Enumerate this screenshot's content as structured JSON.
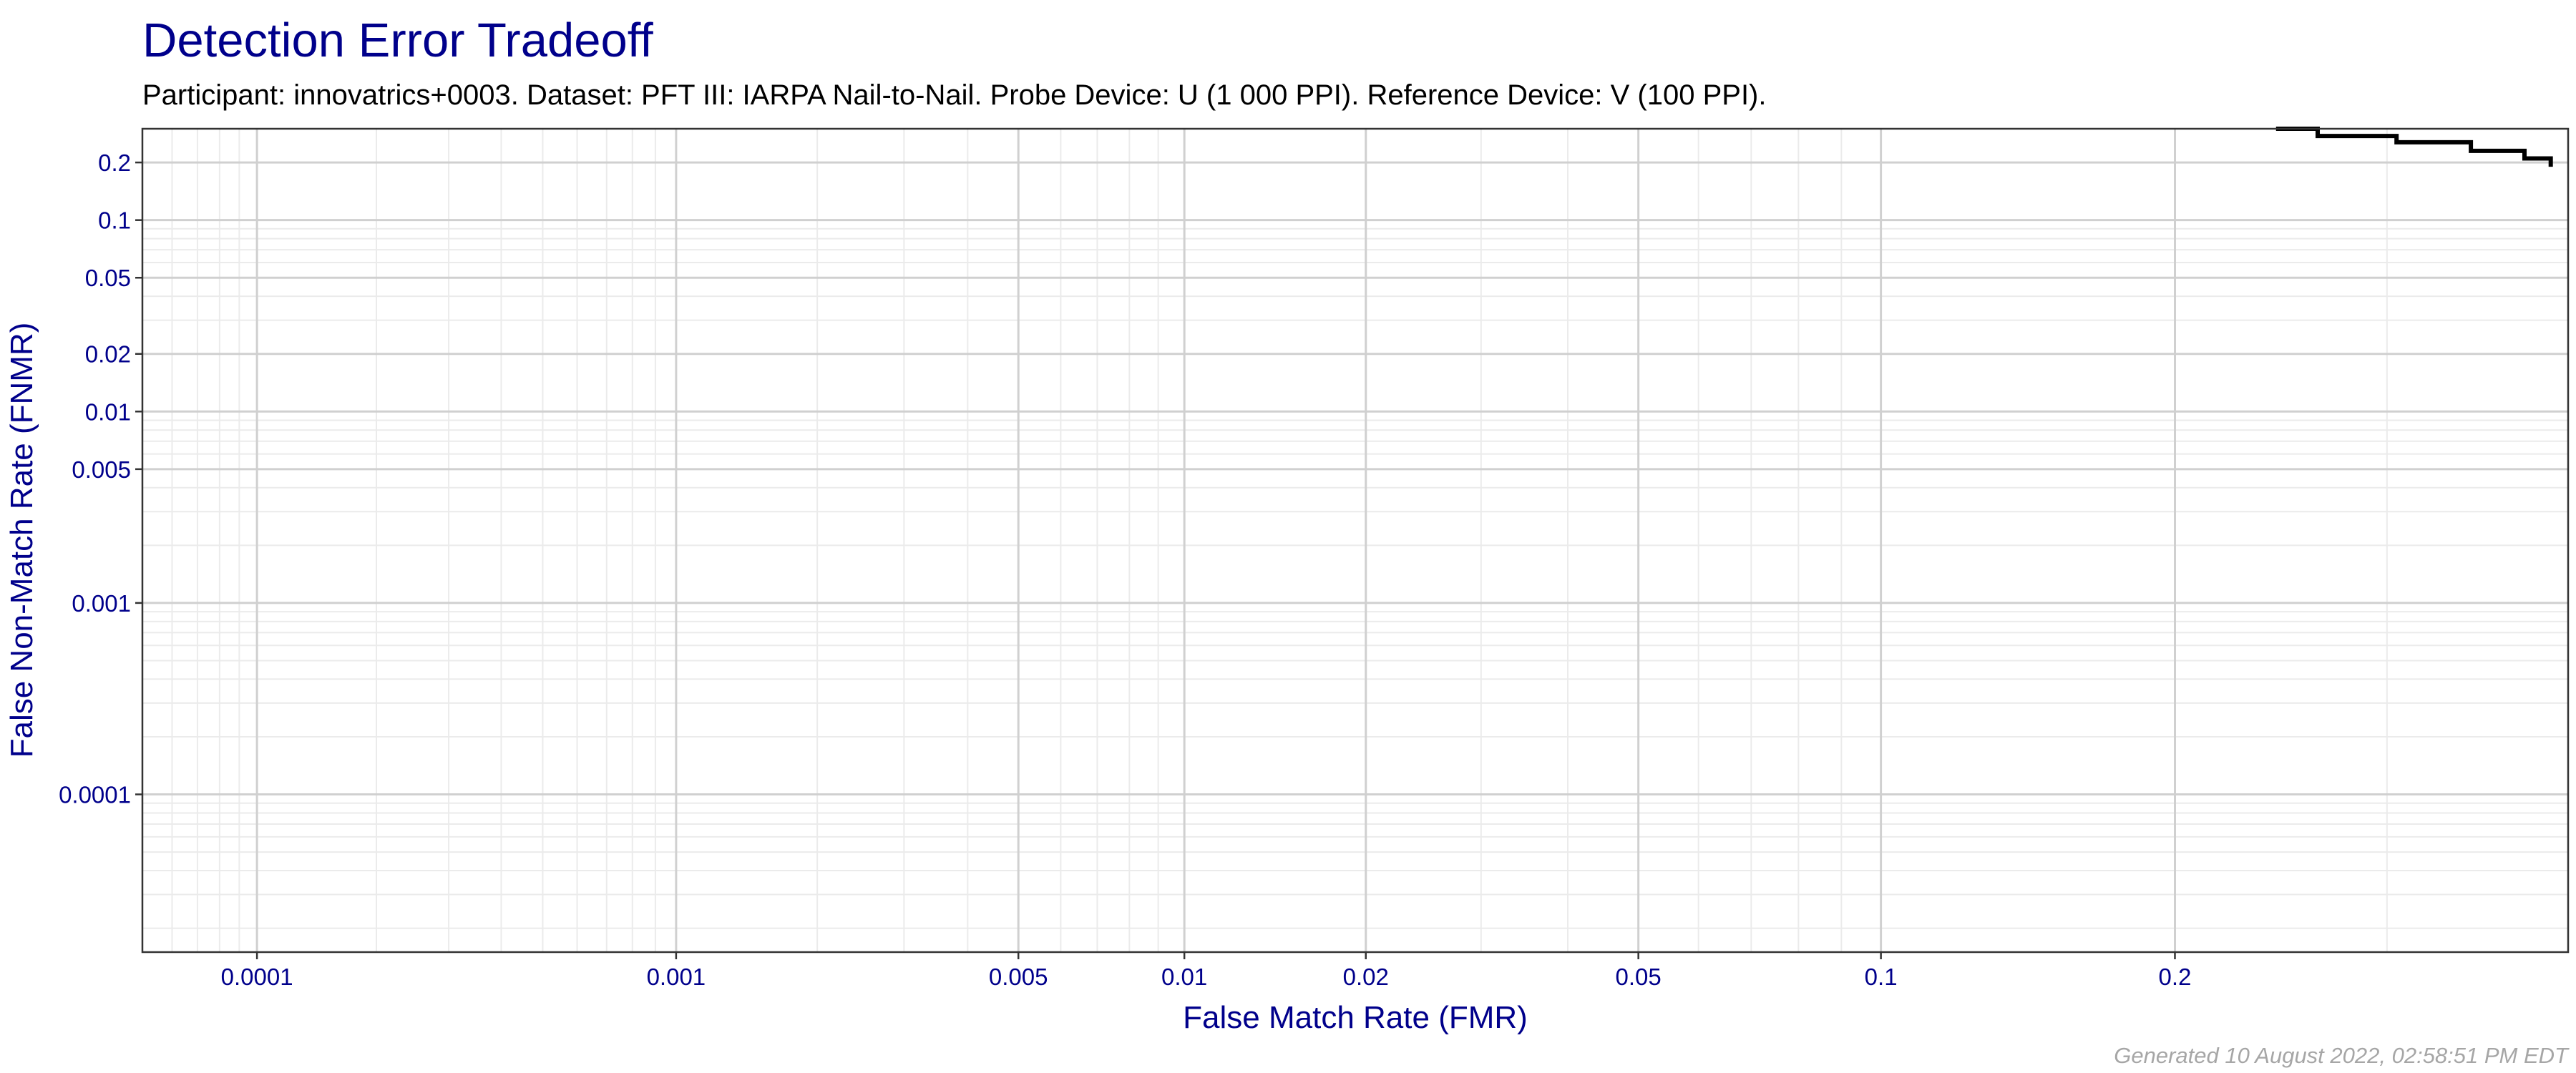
{
  "chart_data": {
    "type": "line",
    "title": "Detection Error Tradeoff",
    "subtitle": "Participant: innovatrics+0003. Dataset: PFT III: IARPA Nail-to-Nail. Probe Device: U (1 000 PPI). Reference Device: V (100 PPI).",
    "xlabel": "False Match Rate (FMR)",
    "ylabel": "False Non-Match Rate (FNMR)",
    "x_scale": "probit",
    "y_scale": "log",
    "xlim": [
      5e-05,
      0.4
    ],
    "ylim": [
      1.5e-05,
      0.3
    ],
    "x_ticks": [
      {
        "value": 0.0001,
        "label": "0.0001"
      },
      {
        "value": 0.001,
        "label": "0.001"
      },
      {
        "value": 0.005,
        "label": "0.005"
      },
      {
        "value": 0.01,
        "label": "0.01"
      },
      {
        "value": 0.02,
        "label": "0.02"
      },
      {
        "value": 0.05,
        "label": "0.05"
      },
      {
        "value": 0.1,
        "label": "0.1"
      },
      {
        "value": 0.2,
        "label": "0.2"
      }
    ],
    "y_ticks": [
      {
        "value": 0.2,
        "label": "0.2"
      },
      {
        "value": 0.1,
        "label": "0.1"
      },
      {
        "value": 0.05,
        "label": "0.05"
      },
      {
        "value": 0.02,
        "label": "0.02"
      },
      {
        "value": 0.01,
        "label": "0.01"
      },
      {
        "value": 0.005,
        "label": "0.005"
      },
      {
        "value": 0.001,
        "label": "0.001"
      },
      {
        "value": 0.0001,
        "label": "0.0001"
      }
    ],
    "grid": true,
    "series": [
      {
        "color": "#000000",
        "x": [
          0.245,
          0.265,
          0.265,
          0.305,
          0.305,
          0.345,
          0.345,
          0.375,
          0.375,
          0.39,
          0.39
        ],
        "y": [
          0.3,
          0.3,
          0.275,
          0.275,
          0.255,
          0.255,
          0.23,
          0.23,
          0.21,
          0.21,
          0.19
        ]
      }
    ]
  },
  "caption": "Generated 10 August 2022, 02:58:51 PM EDT"
}
